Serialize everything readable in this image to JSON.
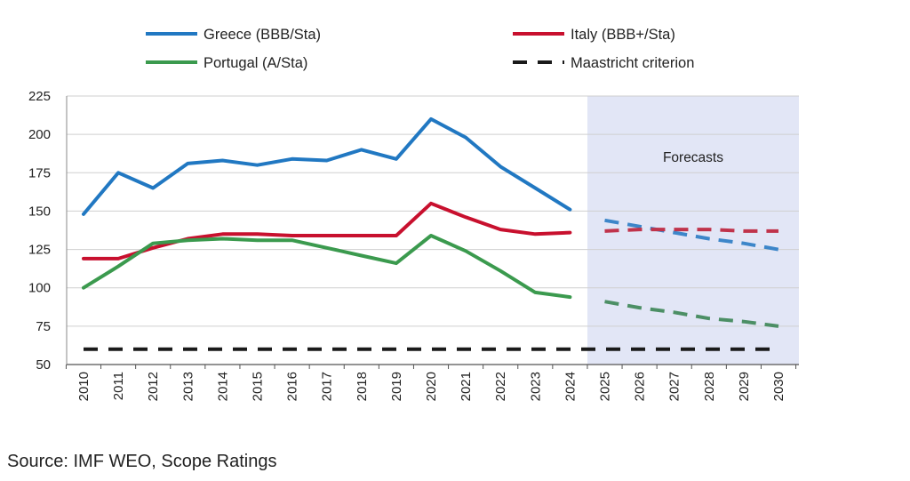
{
  "chart_data": {
    "type": "line",
    "title": "",
    "xlabel": "",
    "ylabel": "",
    "categories": [
      "2010",
      "2011",
      "2012",
      "2013",
      "2014",
      "2015",
      "2016",
      "2017",
      "2018",
      "2019",
      "2020",
      "2021",
      "2022",
      "2023",
      "2024",
      "2025",
      "2026",
      "2027",
      "2028",
      "2029",
      "2030"
    ],
    "ylim": [
      50,
      225
    ],
    "yticks": [
      50,
      75,
      100,
      125,
      150,
      175,
      200,
      225
    ],
    "grid": true,
    "forecast_start": "2025",
    "forecast_label": "Forecasts",
    "legend_position": "top",
    "series": [
      {
        "name": "Greece (BBB/Sta)",
        "color": "#2178c2",
        "style": "solid-then-dashed",
        "values": [
          148,
          175,
          165,
          181,
          183,
          180,
          184,
          183,
          190,
          184,
          210,
          198,
          179,
          165,
          151,
          144,
          140,
          136,
          132,
          129,
          125
        ]
      },
      {
        "name": "Italy (BBB+/Sta)",
        "color": "#c8102e",
        "style": "solid-then-dashed",
        "values": [
          119,
          119,
          126,
          132,
          135,
          135,
          134,
          134,
          134,
          134,
          155,
          146,
          138,
          135,
          136,
          137,
          138,
          138,
          138,
          137,
          137
        ]
      },
      {
        "name": "Portugal (A/Sta)",
        "color": "#3b9a4e",
        "style": "solid-then-dashed",
        "values": [
          100,
          114,
          129,
          131,
          132,
          131,
          131,
          126,
          121,
          116,
          134,
          124,
          111,
          97,
          94,
          91,
          87,
          84,
          80,
          78,
          75
        ]
      },
      {
        "name": "Maastricht criterion",
        "color": "#1a1a1a",
        "style": "dashed",
        "values": [
          60,
          60,
          60,
          60,
          60,
          60,
          60,
          60,
          60,
          60,
          60,
          60,
          60,
          60,
          60,
          60,
          60,
          60,
          60,
          60,
          60
        ]
      }
    ]
  },
  "source": "Source: IMF WEO, Scope Ratings"
}
